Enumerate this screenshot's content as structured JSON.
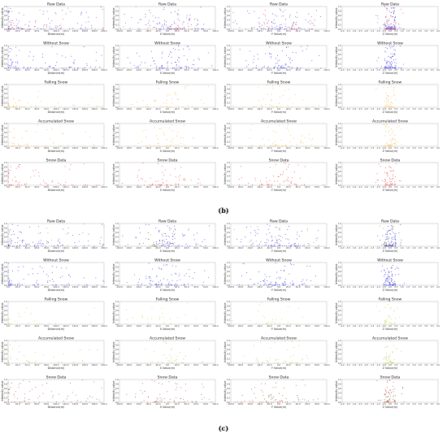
{
  "figure_labels": [
    "(b)",
    "(c)"
  ],
  "chart_data": [
    {
      "type": "scatter",
      "figure": "(b)",
      "rows": [
        {
          "title": "Raw Data",
          "series": [
            {
              "color": "#1f1fdc",
              "density": 1.0
            },
            {
              "color": "#e8262a",
              "density": 0.5
            }
          ]
        },
        {
          "title": "Without Snow",
          "series": [
            {
              "color": "#1f1fdc",
              "density": 1.0
            }
          ]
        },
        {
          "title": "Falling Snow",
          "series": [
            {
              "color": "#f5a623",
              "density": 0.5
            }
          ]
        },
        {
          "title": "Accumulated Snow",
          "series": [
            {
              "color": "#f5a623",
              "density": 0.6
            }
          ]
        },
        {
          "title": "Snow Data",
          "series": [
            {
              "color": "#e8262a",
              "density": 0.7
            }
          ]
        }
      ],
      "columns": [
        {
          "xlabel": "Distance(m)",
          "xticks": [
            "0.0",
            "20.0",
            "40.0",
            "60.0",
            "80.0",
            "100.0",
            "120.0",
            "140.0",
            "160.0",
            "180.0",
            "200.0"
          ]
        },
        {
          "xlabel": "X Value(m)",
          "xticks": [
            "-100.0",
            "-80.0",
            "-60.0",
            "-40.0",
            "-20.0",
            "0.0",
            "20.0",
            "40.0",
            "60.0",
            "80.0",
            "100.0"
          ]
        },
        {
          "xlabel": "Y Value(m)",
          "xticks": [
            "-100.0",
            "-80.0",
            "-60.0",
            "-40.0",
            "-20.0",
            "0.0",
            "20.0",
            "40.0",
            "60.0",
            "80.0",
            "100.0"
          ]
        },
        {
          "xlabel": "Z Value(m)",
          "xticks": [
            "-4.0",
            "-3.5",
            "-3.0",
            "-2.5",
            "-2.0",
            "-1.5",
            "-1.0",
            "-0.5",
            "0.0",
            "0.5",
            "1.0",
            "1.5",
            "2.0",
            "2.5",
            "3.0",
            "3.5",
            "4.0"
          ]
        }
      ],
      "ylabel": "Intensity value",
      "ylim": [
        0,
        1.0
      ],
      "yticks": [
        "0.0",
        "0.2",
        "0.4",
        "0.6",
        "0.8",
        "1.0"
      ]
    },
    {
      "type": "scatter",
      "figure": "(c)",
      "rows": [
        {
          "title": "Raw Data",
          "series": [
            {
              "color": "#1f1fdc",
              "density": 1.0
            },
            {
              "color": "#8a7a1a",
              "density": 0.4
            }
          ]
        },
        {
          "title": "Without Snow",
          "series": [
            {
              "color": "#1f1fdc",
              "density": 1.0
            }
          ]
        },
        {
          "title": "Falling Snow",
          "series": [
            {
              "color": "#c8c820",
              "density": 0.35
            }
          ]
        },
        {
          "title": "Accumulated Snow",
          "series": [
            {
              "color": "#a8b828",
              "density": 0.5
            }
          ]
        },
        {
          "title": "Snow Data",
          "series": [
            {
              "color": "#6b4a1a",
              "density": 0.5
            },
            {
              "color": "#e8262a",
              "density": 0.3
            }
          ]
        }
      ],
      "columns": [
        {
          "xlabel": "Distance(m)",
          "xticks": [
            "0.0",
            "20.0",
            "40.0",
            "60.0",
            "80.0",
            "100.0",
            "120.0",
            "140.0",
            "160.0",
            "180.0",
            "200.0"
          ]
        },
        {
          "xlabel": "X Value(m)",
          "xticks": [
            "-100.0",
            "-80.0",
            "-60.0",
            "-40.0",
            "-20.0",
            "0.0",
            "20.0",
            "40.0",
            "60.0",
            "80.0",
            "100.0"
          ]
        },
        {
          "xlabel": "Y Value(m)",
          "xticks": [
            "-100.0",
            "-80.0",
            "-60.0",
            "-40.0",
            "-20.0",
            "0.0",
            "20.0",
            "40.0",
            "60.0",
            "80.0",
            "100.0"
          ]
        },
        {
          "xlabel": "Z Value(m)",
          "xticks": [
            "-4.0",
            "-3.5",
            "-3.0",
            "-2.5",
            "-2.0",
            "-1.5",
            "-1.0",
            "-0.5",
            "0.0",
            "0.5",
            "1.0",
            "1.5",
            "2.0",
            "2.5",
            "3.0",
            "3.5",
            "4.0"
          ]
        }
      ],
      "ylabel": "Intensity value",
      "ylim": [
        0,
        1.0
      ],
      "yticks": [
        "0.0",
        "0.2",
        "0.4",
        "0.6",
        "0.8",
        "1.0"
      ]
    }
  ]
}
